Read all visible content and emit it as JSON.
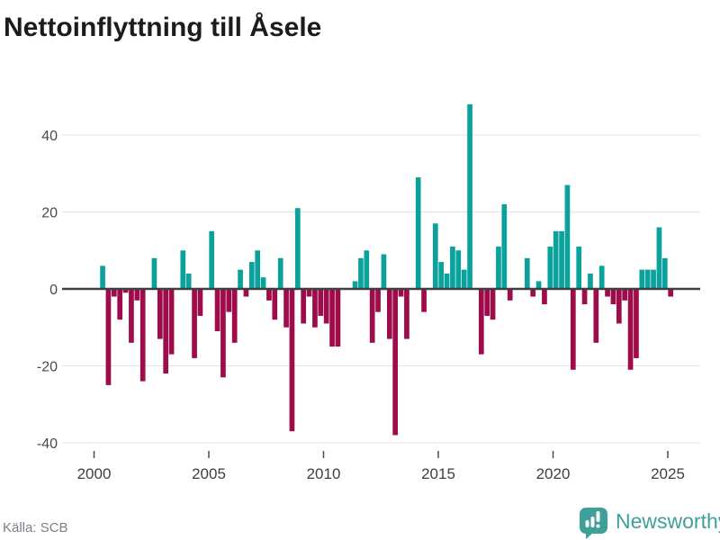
{
  "header": {
    "title": "Nettoinflyttning till Åsele"
  },
  "footer": {
    "source": "Källa: SCB",
    "brand": "Newsworthy"
  },
  "colors": {
    "positive_bar": "#0ba29d",
    "negative_bar": "#9e0c4b",
    "zero_line": "#3f3f3f",
    "gridline": "#e4e4e4",
    "tick_mark": "#4a4a4a",
    "brand_teal": "#3f9f99",
    "title_text": "#1c1c1c",
    "axis_text": "#4a4a4a",
    "source_text": "#7e7e86"
  },
  "chart_data": {
    "type": "bar",
    "title": "Nettoinflyttning till Åsele",
    "ylabel": "",
    "xlabel": "",
    "legend": "none",
    "grid": "horizontal",
    "frequency": "quarterly",
    "start_year": 2000,
    "start_quarter": 1,
    "x_ticks": [
      2000,
      2005,
      2010,
      2015,
      2020,
      2025
    ],
    "y_ticks": [
      40,
      20,
      0,
      -20,
      -40
    ],
    "ylim": [
      -46,
      50
    ],
    "values": [
      0,
      6,
      -25,
      -2,
      -8,
      -1,
      -14,
      -3,
      -24,
      0,
      8,
      -13,
      -22,
      -17,
      0,
      10,
      4,
      -18,
      -7,
      0,
      15,
      -11,
      -23,
      -6,
      -14,
      5,
      -2,
      7,
      10,
      3,
      -3,
      -8,
      8,
      -10,
      -37,
      21,
      -9,
      -2,
      -10,
      -7,
      -9,
      -15,
      -15,
      0,
      0,
      2,
      8,
      10,
      -14,
      -6,
      9,
      -13,
      -38,
      -2,
      -13,
      0,
      29,
      -6,
      0,
      17,
      7,
      4,
      11,
      10,
      5,
      48,
      0,
      -17,
      -7,
      -8,
      11,
      22,
      -3,
      0,
      0,
      8,
      -2,
      2,
      -4,
      11,
      15,
      15,
      27,
      -21,
      11,
      -4,
      4,
      -14,
      6,
      -2,
      -4,
      -9,
      -3,
      -21,
      -18,
      5,
      5,
      5,
      16,
      8,
      -2
    ]
  }
}
